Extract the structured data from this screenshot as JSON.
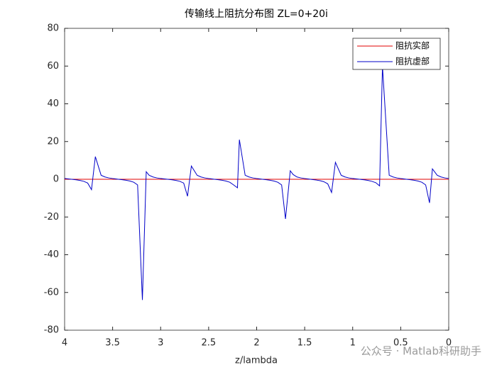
{
  "chart_data": {
    "type": "line",
    "title": "传输线上阻抗分布图  ZL=0+20i",
    "xlabel": "z/lambda",
    "x": [
      0,
      0.04,
      0.08,
      0.12,
      0.17,
      0.2,
      0.24,
      0.28,
      0.32,
      0.36,
      0.4,
      0.44,
      0.48,
      0.5,
      0.54,
      0.58,
      0.62,
      0.69,
      0.72,
      0.76,
      0.8,
      0.84,
      0.88,
      0.92,
      0.96,
      1,
      1.04,
      1.08,
      1.12,
      1.18,
      1.22,
      1.26,
      1.3,
      1.34,
      1.38,
      1.42,
      1.46,
      1.5,
      1.54,
      1.58,
      1.62,
      1.65,
      1.7,
      1.74,
      1.78,
      1.82,
      1.86,
      1.9,
      1.94,
      1.98,
      2,
      2.04,
      2.08,
      2.12,
      2.18,
      2.2,
      2.24,
      2.28,
      2.32,
      2.36,
      2.4,
      2.44,
      2.48,
      2.5,
      2.54,
      2.58,
      2.62,
      2.68,
      2.72,
      2.76,
      2.8,
      2.84,
      2.88,
      2.92,
      2.96,
      3,
      3.04,
      3.08,
      3.12,
      3.15,
      3.19,
      3.24,
      3.28,
      3.32,
      3.36,
      3.4,
      3.44,
      3.48,
      3.5,
      3.54,
      3.58,
      3.62,
      3.68,
      3.72,
      3.76,
      3.8,
      3.84,
      3.88,
      3.92,
      3.96,
      4
    ],
    "series": [
      {
        "name": "阻抗实部",
        "color": "#e00000",
        "values": [
          0,
          0,
          0,
          0,
          0,
          0,
          0,
          0,
          0,
          0,
          0,
          0,
          0,
          0,
          0,
          0,
          0,
          0,
          0,
          0,
          0,
          0,
          0,
          0,
          0,
          0,
          0,
          0,
          0,
          0,
          0,
          0,
          0,
          0,
          0,
          0,
          0,
          0,
          0,
          0,
          0,
          0,
          0,
          0,
          0,
          0,
          0,
          0,
          0,
          0,
          0,
          0,
          0,
          0,
          0,
          0,
          0,
          0,
          0,
          0,
          0,
          0,
          0,
          0,
          0,
          0,
          0,
          0,
          0,
          0,
          0,
          0,
          0,
          0,
          0,
          0,
          0,
          0,
          0,
          0,
          0,
          0,
          0,
          0,
          0,
          0,
          0,
          0,
          0,
          0,
          0,
          0,
          0,
          0,
          0,
          0,
          0,
          0,
          0,
          0,
          0
        ]
      },
      {
        "name": "阻抗虚部",
        "color": "#0000c8",
        "values": [
          0.4,
          0.73,
          1.22,
          2.13,
          5.5,
          -12.5,
          -3,
          -1.57,
          -0.93,
          -0.53,
          -0.25,
          0,
          0.26,
          0.4,
          0.73,
          1.22,
          2.13,
          60,
          -3.5,
          -1.8,
          -1.1,
          -0.6,
          -0.3,
          -0.05,
          0.2,
          0.4,
          0.73,
          1.22,
          2.13,
          9,
          -7,
          -2.4,
          -1.3,
          -0.75,
          -0.4,
          -0.12,
          0.13,
          0.4,
          0.73,
          1.22,
          2.5,
          4.5,
          -21,
          -3,
          -1.57,
          -0.93,
          -0.53,
          -0.25,
          0,
          0.26,
          0.4,
          0.73,
          1.22,
          2.13,
          21,
          -4.5,
          -3,
          -1.57,
          -0.93,
          -0.53,
          -0.25,
          0,
          0.26,
          0.4,
          0.73,
          1.22,
          2.13,
          7,
          -9,
          -2,
          -1.1,
          -0.6,
          -0.3,
          -0.05,
          0.2,
          0.4,
          0.73,
          1.22,
          2.13,
          4,
          -64,
          -3,
          -1.57,
          -0.93,
          -0.53,
          -0.25,
          0,
          0.26,
          0.4,
          0.73,
          1.22,
          2.13,
          12,
          -5.5,
          -2,
          -1.1,
          -0.6,
          -0.3,
          -0.05,
          0.2,
          0.4
        ]
      }
    ],
    "xlim": [
      4,
      0
    ],
    "xticks": [
      4,
      3.5,
      3,
      2.5,
      2,
      1.5,
      1,
      0.5,
      0
    ],
    "ylim": [
      -80,
      80
    ],
    "yticks": [
      -80,
      -60,
      -40,
      -20,
      0,
      20,
      40,
      60,
      80
    ],
    "grid": false,
    "legend": "northeast",
    "watermark": "公众号 · Matlab科研助手"
  }
}
